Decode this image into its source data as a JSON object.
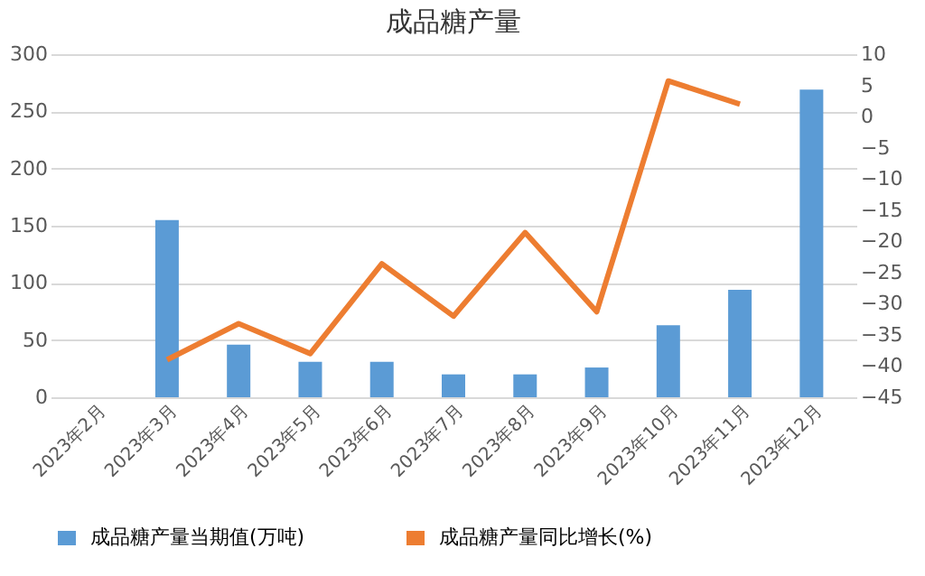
{
  "chart_data": {
    "type": "bar",
    "title": "成品糖产量",
    "categories": [
      "2023年2月",
      "2023年3月",
      "2023年4月",
      "2023年5月",
      "2023年6月",
      "2023年7月",
      "2023年8月",
      "2023年9月",
      "2023年10月",
      "2023年11月",
      "2023年12月"
    ],
    "series": [
      {
        "name": "成品糖产量当期值(万吨)",
        "color": "#5b9bd5",
        "values": [
          null,
          155,
          46,
          31,
          31,
          20,
          20,
          26,
          63,
          94,
          269
        ]
      },
      {
        "name": "成品糖产量同比增长(%)",
        "type": "line",
        "axis": "y2",
        "color": "#ed7d31",
        "values": [
          null,
          -39,
          -33.2,
          -38,
          -23.6,
          -32,
          -18.6,
          -31.3,
          5.7,
          2.0,
          null
        ]
      }
    ],
    "ylim": [
      0,
      300
    ],
    "yticks": [
      0,
      50,
      100,
      150,
      200,
      250,
      300
    ],
    "y2lim": [
      -45,
      10
    ],
    "y2ticks": [
      -45,
      -40,
      -35,
      -30,
      -25,
      -20,
      -15,
      -10,
      -5,
      0,
      5,
      10
    ],
    "grid": "y",
    "legend": "bottom"
  }
}
